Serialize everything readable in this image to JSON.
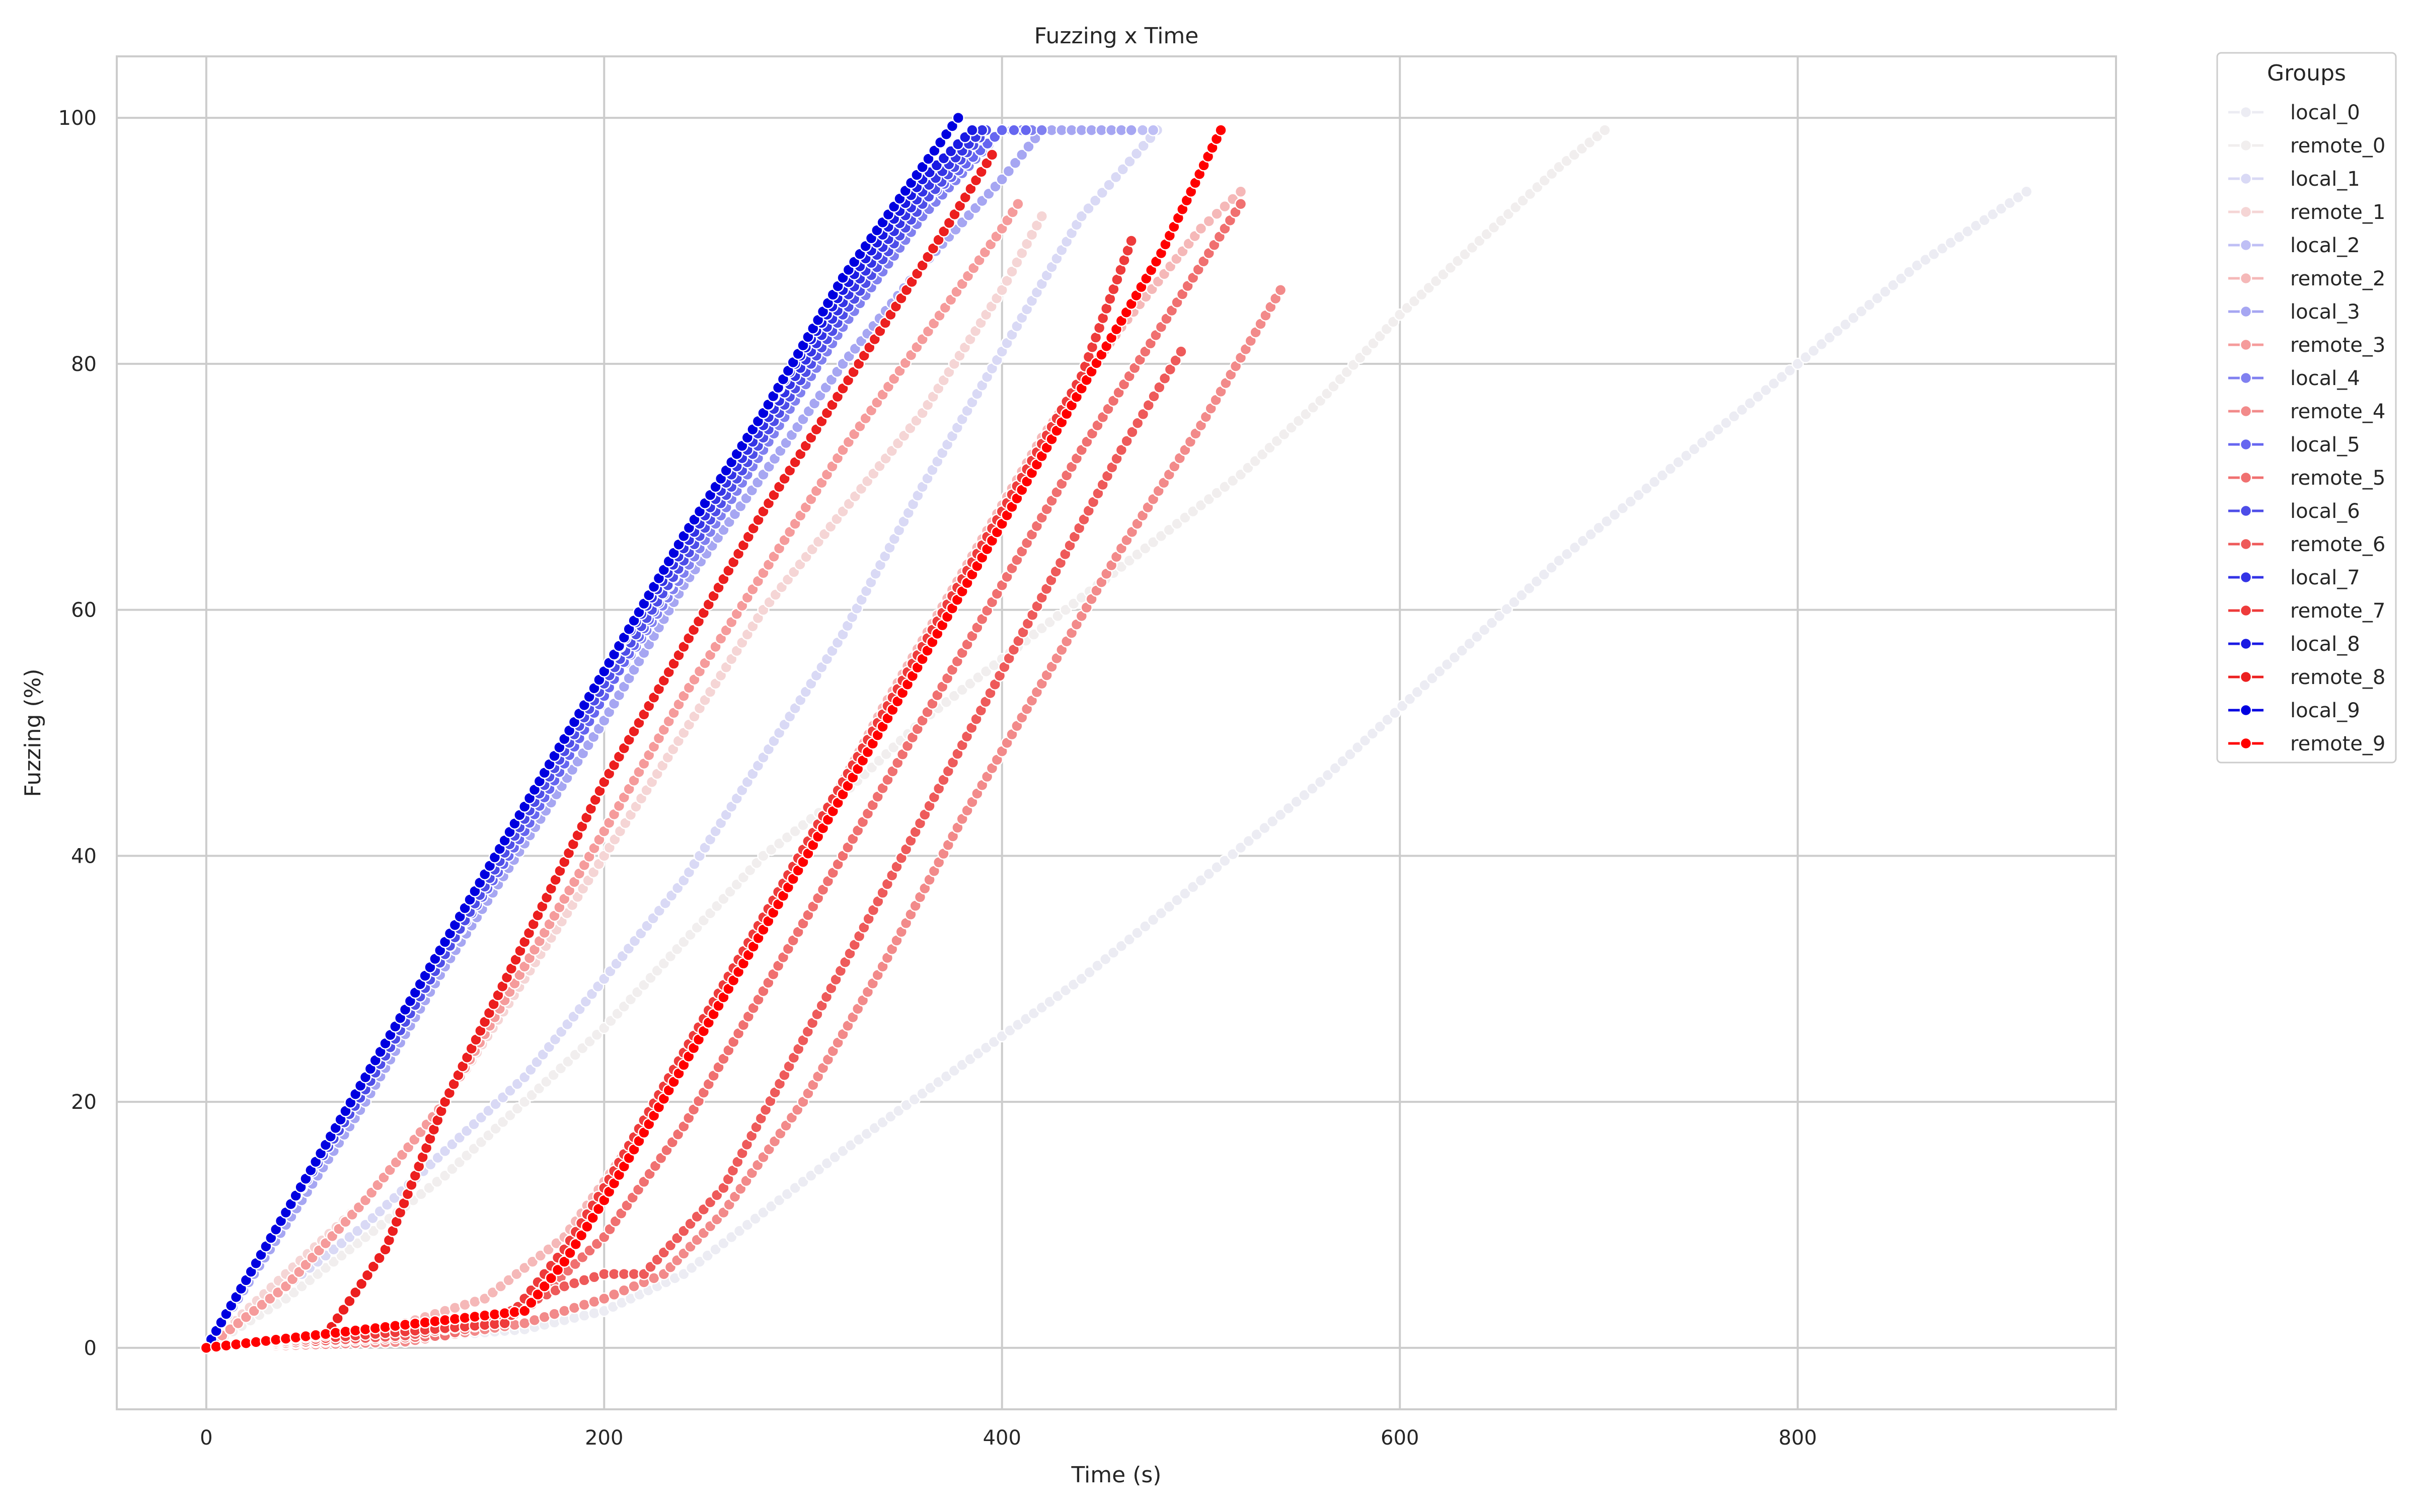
{
  "chart_data": {
    "type": "scatter",
    "title": "Fuzzing x Time",
    "xlabel": "Time (s)",
    "ylabel": "Fuzzing (%)",
    "xlim": [
      -45,
      960
    ],
    "ylim": [
      -5,
      105
    ],
    "xticks": [
      0,
      200,
      400,
      600,
      800
    ],
    "yticks": [
      0,
      20,
      40,
      60,
      80,
      100
    ],
    "grid": true,
    "legend": {
      "title": "Groups",
      "placement": "outside-top-right"
    },
    "series": [
      {
        "name": "local_0",
        "color": "#ececf3",
        "x": [
          0,
          120,
          160,
          200,
          240,
          280,
          320,
          380,
          440,
          500,
          560,
          620,
          680,
          740,
          800,
          860,
          915
        ],
        "y": [
          0,
          1,
          1.5,
          3,
          6,
          11,
          16,
          23,
          30,
          38,
          46,
          55,
          64,
          72,
          80,
          88,
          94
        ]
      },
      {
        "name": "remote_0",
        "color": "#f1eeee",
        "x": [
          0,
          40,
          80,
          120,
          160,
          200,
          240,
          280,
          320,
          360,
          400,
          440,
          480,
          520,
          560,
          600,
          640,
          680,
          703
        ],
        "y": [
          0,
          4,
          9,
          14,
          20,
          26,
          33,
          40,
          45,
          51,
          56,
          61,
          66,
          71,
          77,
          84,
          90,
          96,
          99
        ]
      },
      {
        "name": "local_1",
        "color": "#d9d9f5",
        "x": [
          0,
          40,
          80,
          120,
          160,
          200,
          240,
          280,
          320,
          360,
          400,
          440,
          478
        ],
        "y": [
          0,
          5,
          10,
          16,
          22,
          30,
          38,
          48,
          58,
          70,
          81,
          92,
          99
        ]
      },
      {
        "name": "remote_1",
        "color": "#f5d5d5",
        "x": [
          0,
          40,
          80,
          120,
          160,
          200,
          240,
          280,
          320,
          360,
          400,
          420
        ],
        "y": [
          0,
          6,
          12,
          20,
          30,
          40,
          50,
          60,
          68,
          76,
          86,
          92
        ]
      },
      {
        "name": "local_2",
        "color": "#bfbff5",
        "x": [
          0,
          40,
          80,
          120,
          160,
          200,
          240,
          280,
          320,
          360,
          400,
          420,
          440,
          460,
          476
        ],
        "y": [
          0,
          10,
          21,
          32,
          42,
          53,
          63,
          73,
          83,
          92,
          99,
          99,
          99,
          99,
          99
        ]
      },
      {
        "name": "remote_2",
        "color": "#f5b8b8",
        "x": [
          0,
          60,
          100,
          140,
          180,
          220,
          260,
          300,
          340,
          380,
          420,
          460,
          500,
          520
        ],
        "y": [
          0,
          1,
          2,
          4,
          9,
          18,
          29,
          40,
          52,
          63,
          74,
          83,
          91,
          94
        ]
      },
      {
        "name": "local_3",
        "color": "#a6a6f2",
        "x": [
          0,
          40,
          80,
          120,
          160,
          200,
          240,
          280,
          320,
          360,
          400,
          420,
          440,
          465
        ],
        "y": [
          0,
          10,
          20,
          31,
          41,
          51,
          62,
          71,
          80,
          88,
          95,
          99,
          99,
          99
        ]
      },
      {
        "name": "remote_3",
        "color": "#f59b9b",
        "x": [
          0,
          40,
          80,
          120,
          160,
          200,
          240,
          280,
          320,
          360,
          400,
          408
        ],
        "y": [
          0,
          5,
          12,
          20,
          31,
          42,
          53,
          63,
          73,
          82,
          91,
          93
        ]
      },
      {
        "name": "local_4",
        "color": "#8080f0",
        "x": [
          0,
          40,
          80,
          120,
          160,
          200,
          240,
          280,
          320,
          360,
          400,
          420
        ],
        "y": [
          0,
          11,
          21,
          32,
          42,
          53,
          63,
          73,
          83,
          92,
          99,
          99
        ]
      },
      {
        "name": "remote_4",
        "color": "#f28a8a",
        "x": [
          0,
          100,
          160,
          200,
          230,
          260,
          300,
          340,
          380,
          420,
          460,
          500,
          540
        ],
        "y": [
          0,
          0.5,
          2,
          4,
          6,
          11,
          20,
          31,
          43,
          54,
          65,
          75,
          86
        ]
      },
      {
        "name": "local_5",
        "color": "#6666f0",
        "x": [
          0,
          40,
          80,
          120,
          160,
          200,
          240,
          280,
          320,
          360,
          400,
          412
        ],
        "y": [
          0,
          11,
          21,
          32,
          42,
          53,
          64,
          74,
          84,
          93,
          99,
          99
        ]
      },
      {
        "name": "remote_5",
        "color": "#f07070",
        "x": [
          0,
          120,
          160,
          200,
          240,
          280,
          320,
          360,
          400,
          440,
          480,
          520
        ],
        "y": [
          0,
          1,
          3,
          9,
          18,
          29,
          40,
          51,
          62,
          73,
          83,
          93
        ]
      },
      {
        "name": "local_6",
        "color": "#4d4de8",
        "x": [
          0,
          40,
          80,
          120,
          160,
          200,
          240,
          280,
          320,
          360,
          392
        ],
        "y": [
          0,
          11,
          21,
          32,
          43,
          54,
          64,
          74,
          84,
          93,
          99
        ]
      },
      {
        "name": "remote_6",
        "color": "#ee5a5a",
        "x": [
          0,
          100,
          140,
          180,
          200,
          220,
          260,
          300,
          340,
          380,
          420,
          460,
          490
        ],
        "y": [
          0,
          1,
          2,
          5,
          6,
          6,
          13,
          25,
          37,
          49,
          61,
          73,
          81
        ]
      },
      {
        "name": "local_7",
        "color": "#3333e6",
        "x": [
          0,
          40,
          80,
          120,
          160,
          200,
          240,
          280,
          320,
          360,
          390
        ],
        "y": [
          0,
          11,
          22,
          33,
          44,
          55,
          65,
          75,
          85,
          94,
          99
        ]
      },
      {
        "name": "remote_7",
        "color": "#ee3b3b",
        "x": [
          0,
          150,
          180,
          200,
          240,
          280,
          320,
          360,
          400,
          440,
          465
        ],
        "y": [
          0,
          2,
          8,
          13,
          24,
          35,
          46,
          57,
          68,
          79,
          90
        ]
      },
      {
        "name": "local_8",
        "color": "#1a1ae3",
        "x": [
          0,
          40,
          80,
          120,
          160,
          200,
          240,
          280,
          320,
          360,
          385
        ],
        "y": [
          0,
          11,
          22,
          33,
          44,
          55,
          66,
          76,
          86,
          95,
          99
        ]
      },
      {
        "name": "remote_8",
        "color": "#ec1f1f",
        "x": [
          0,
          60,
          90,
          120,
          160,
          200,
          240,
          280,
          320,
          360,
          395
        ],
        "y": [
          0,
          1,
          8,
          20,
          33,
          46,
          57,
          68,
          78,
          88,
          97
        ]
      },
      {
        "name": "local_9",
        "color": "#0000e0",
        "x": [
          0,
          40,
          80,
          120,
          160,
          200,
          240,
          280,
          320,
          360,
          378
        ],
        "y": [
          0,
          11,
          22,
          33,
          44,
          55,
          66,
          76,
          87,
          96,
          100
        ]
      },
      {
        "name": "remote_9",
        "color": "#ff0000",
        "x": [
          0,
          160,
          180,
          200,
          240,
          280,
          320,
          360,
          400,
          440,
          480,
          510
        ],
        "y": [
          0,
          3,
          7,
          12,
          23,
          34,
          45,
          56,
          67,
          78,
          89,
          99
        ]
      }
    ]
  }
}
